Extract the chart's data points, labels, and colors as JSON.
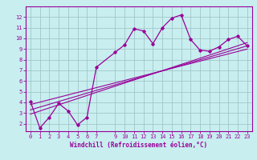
{
  "xlabel": "Windchill (Refroidissement éolien,°C)",
  "background_color": "#c8eef0",
  "grid_color": "#9bbfc0",
  "line_color": "#990099",
  "x_data": [
    0,
    1,
    2,
    3,
    4,
    5,
    6,
    7,
    9,
    10,
    11,
    12,
    13,
    14,
    15,
    16,
    17,
    18,
    19,
    20,
    21,
    22,
    23
  ],
  "y_data": [
    4.1,
    1.6,
    2.6,
    3.9,
    3.2,
    1.9,
    2.6,
    7.3,
    8.7,
    9.4,
    10.9,
    10.7,
    9.5,
    11.0,
    11.9,
    12.2,
    9.9,
    8.9,
    8.8,
    9.2,
    9.9,
    10.2,
    9.3
  ],
  "xlim": [
    -0.5,
    23.5
  ],
  "ylim": [
    1.3,
    13.0
  ],
  "yticks": [
    2,
    3,
    4,
    5,
    6,
    7,
    8,
    9,
    10,
    11,
    12
  ],
  "xticks": [
    0,
    1,
    2,
    3,
    4,
    5,
    6,
    7,
    9,
    10,
    11,
    12,
    13,
    14,
    15,
    16,
    17,
    18,
    19,
    20,
    21,
    22,
    23
  ],
  "reg_line1_x": [
    0,
    23
  ],
  "reg_line1_y": [
    3.8,
    9.0
  ],
  "reg_line2_x": [
    0,
    23
  ],
  "reg_line2_y": [
    3.3,
    9.3
  ],
  "reg_line3_x": [
    0,
    23
  ],
  "reg_line3_y": [
    2.9,
    9.6
  ]
}
